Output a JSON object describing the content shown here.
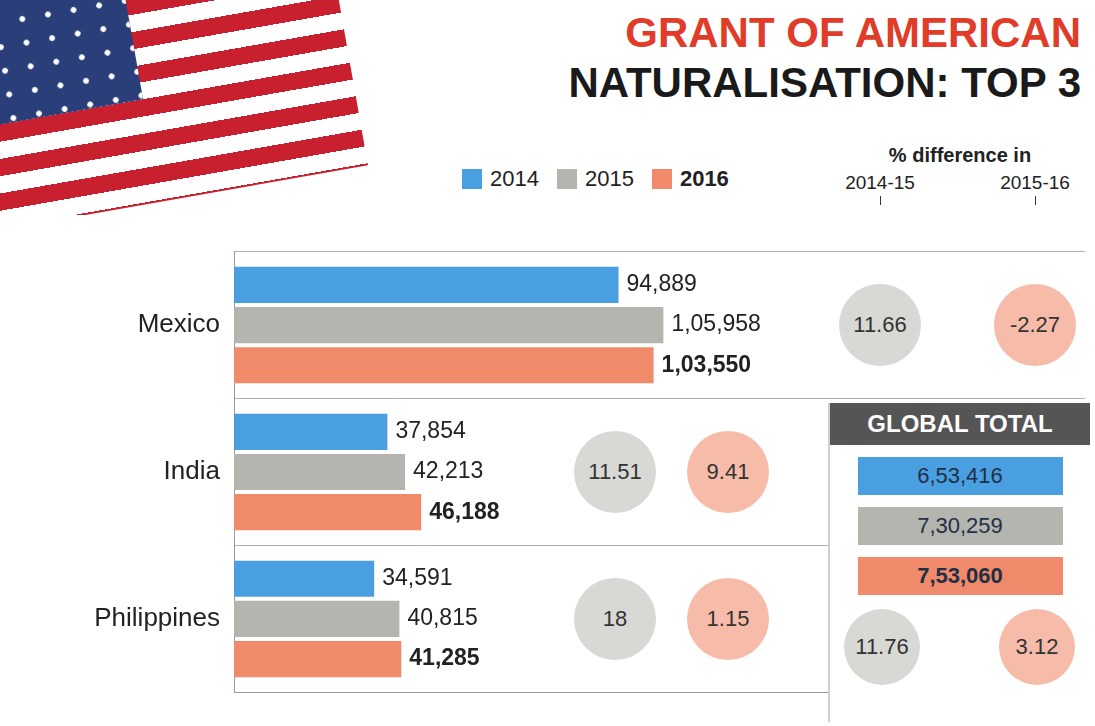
{
  "chart_data": {
    "type": "bar",
    "orientation": "horizontal",
    "title": "GRANT OF AMERICAN NATURALISATION: TOP 3",
    "categories": [
      "Mexico",
      "India",
      "Philippines"
    ],
    "series": [
      {
        "name": "2014",
        "color": "#4a9fe0",
        "values": [
          94889,
          37854,
          34591
        ],
        "value_labels": [
          "94,889",
          "37,854",
          "34,591"
        ]
      },
      {
        "name": "2015",
        "color": "#b5b5b0",
        "values": [
          105958,
          42213,
          40815
        ],
        "value_labels": [
          "1,05,958",
          "42,213",
          "40,815"
        ]
      },
      {
        "name": "2016",
        "color": "#f08a6a",
        "values": [
          103550,
          46188,
          41285
        ],
        "value_labels": [
          "1,03,550",
          "46,188",
          "41,285"
        ]
      }
    ],
    "xlim": [
      0,
      210000
    ],
    "data_labels": true,
    "tick_labels": "y",
    "grid": true,
    "legend": "top",
    "percent_difference": {
      "title": "% difference in",
      "periods": [
        "2014-15",
        "2015-16"
      ],
      "values": [
        [
          11.66,
          -2.27
        ],
        [
          11.51,
          9.41
        ],
        [
          18,
          1.15
        ]
      ]
    },
    "global_total": {
      "title": "GLOBAL TOTAL",
      "values": [
        653416,
        730259,
        753060
      ],
      "value_labels": [
        "6,53,416",
        "7,30,259",
        "7,53,060"
      ],
      "percent_difference": [
        11.76,
        3.12
      ]
    }
  }
}
